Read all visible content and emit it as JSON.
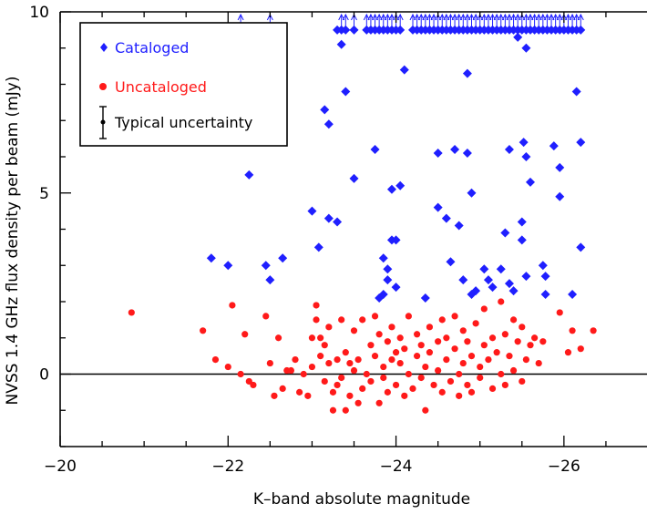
{
  "chart_data": {
    "type": "scatter",
    "title": "",
    "xlabel": "K–band absolute magnitude",
    "ylabel": "NVSS 1.4 GHz flux density per beam (mJy)",
    "xlim": [
      -20,
      -27
    ],
    "ylim": [
      -2,
      10
    ],
    "x_reversed": true,
    "xticks": [
      -20,
      -22,
      -24,
      -26
    ],
    "yticks": [
      0,
      5,
      10
    ],
    "xtick_labels": [
      "−20",
      "−22",
      "−24",
      "−26"
    ],
    "ytick_labels": [
      "0",
      "5",
      "10"
    ],
    "grid": false,
    "zero_line": true,
    "legend": {
      "placement": "top-left",
      "entries": [
        {
          "label": "Cataloged",
          "color": "#1f1fff",
          "marker": "diamond"
        },
        {
          "label": "Uncataloged",
          "color": "#ff1a1a",
          "marker": "circle"
        },
        {
          "label": "Typical uncertainty",
          "color": "#000000",
          "marker": "errorbar"
        }
      ]
    },
    "series": [
      {
        "name": "Cataloged",
        "color": "#1f1fff",
        "marker": "diamond",
        "points": [
          [
            -21.8,
            3.2
          ],
          [
            -22.0,
            3.0
          ],
          [
            -22.25,
            5.5
          ],
          [
            -22.45,
            3.0
          ],
          [
            -22.5,
            2.6
          ],
          [
            -22.65,
            3.2
          ],
          [
            -23.0,
            4.5
          ],
          [
            -23.08,
            3.5
          ],
          [
            -23.15,
            7.3
          ],
          [
            -23.2,
            6.9
          ],
          [
            -23.2,
            4.3
          ],
          [
            -23.3,
            4.2
          ],
          [
            -23.35,
            9.1
          ],
          [
            -23.4,
            7.8
          ],
          [
            -23.5,
            5.4
          ],
          [
            -23.75,
            6.2
          ],
          [
            -23.8,
            2.1
          ],
          [
            -23.85,
            2.2
          ],
          [
            -23.85,
            3.2
          ],
          [
            -23.9,
            2.9
          ],
          [
            -23.9,
            2.6
          ],
          [
            -23.95,
            3.7
          ],
          [
            -23.95,
            5.1
          ],
          [
            -24.0,
            3.7
          ],
          [
            -24.0,
            2.4
          ],
          [
            -24.05,
            5.2
          ],
          [
            -24.1,
            8.4
          ],
          [
            -24.35,
            2.1
          ],
          [
            -24.5,
            6.1
          ],
          [
            -24.5,
            4.6
          ],
          [
            -24.6,
            4.3
          ],
          [
            -24.65,
            3.1
          ],
          [
            -24.7,
            6.2
          ],
          [
            -24.75,
            4.1
          ],
          [
            -24.8,
            2.6
          ],
          [
            -24.85,
            6.1
          ],
          [
            -24.85,
            8.3
          ],
          [
            -24.9,
            2.2
          ],
          [
            -24.9,
            5.0
          ],
          [
            -24.95,
            2.3
          ],
          [
            -25.05,
            2.9
          ],
          [
            -25.1,
            2.6
          ],
          [
            -25.15,
            2.4
          ],
          [
            -25.25,
            2.9
          ],
          [
            -25.3,
            3.9
          ],
          [
            -25.35,
            6.2
          ],
          [
            -25.35,
            2.5
          ],
          [
            -25.4,
            2.3
          ],
          [
            -25.45,
            9.3
          ],
          [
            -25.5,
            4.2
          ],
          [
            -25.5,
            3.7
          ],
          [
            -25.52,
            6.4
          ],
          [
            -25.55,
            9.0
          ],
          [
            -25.55,
            6.0
          ],
          [
            -25.55,
            2.7
          ],
          [
            -25.6,
            5.3
          ],
          [
            -25.75,
            3.0
          ],
          [
            -25.78,
            2.7
          ],
          [
            -25.78,
            2.2
          ],
          [
            -25.88,
            6.3
          ],
          [
            -25.95,
            5.7
          ],
          [
            -25.95,
            4.9
          ],
          [
            -26.1,
            2.2
          ],
          [
            -26.15,
            7.8
          ],
          [
            -26.2,
            3.5
          ],
          [
            -26.2,
            6.4
          ],
          [
            -23.3,
            9.5
          ],
          [
            -23.35,
            9.5
          ],
          [
            -23.4,
            9.5
          ],
          [
            -23.5,
            9.5
          ],
          [
            -23.65,
            9.5
          ],
          [
            -23.7,
            9.5
          ],
          [
            -23.75,
            9.5
          ],
          [
            -23.8,
            9.5
          ],
          [
            -23.85,
            9.5
          ],
          [
            -23.9,
            9.5
          ],
          [
            -23.95,
            9.5
          ],
          [
            -24.0,
            9.5
          ],
          [
            -24.05,
            9.5
          ],
          [
            -24.2,
            9.5
          ],
          [
            -24.25,
            9.5
          ],
          [
            -24.3,
            9.5
          ],
          [
            -24.35,
            9.5
          ],
          [
            -24.4,
            9.5
          ],
          [
            -24.45,
            9.5
          ],
          [
            -24.5,
            9.5
          ],
          [
            -24.55,
            9.5
          ],
          [
            -24.6,
            9.5
          ],
          [
            -24.65,
            9.5
          ],
          [
            -24.7,
            9.5
          ],
          [
            -24.75,
            9.5
          ],
          [
            -24.8,
            9.5
          ],
          [
            -24.85,
            9.5
          ],
          [
            -24.9,
            9.5
          ],
          [
            -24.95,
            9.5
          ],
          [
            -25.0,
            9.5
          ],
          [
            -25.05,
            9.5
          ],
          [
            -25.1,
            9.5
          ],
          [
            -25.15,
            9.5
          ],
          [
            -25.2,
            9.5
          ],
          [
            -25.25,
            9.5
          ],
          [
            -25.3,
            9.5
          ],
          [
            -25.35,
            9.5
          ],
          [
            -25.4,
            9.5
          ],
          [
            -25.45,
            9.5
          ],
          [
            -25.5,
            9.5
          ],
          [
            -25.55,
            9.5
          ],
          [
            -25.6,
            9.5
          ],
          [
            -25.65,
            9.5
          ],
          [
            -25.7,
            9.5
          ],
          [
            -25.75,
            9.5
          ],
          [
            -25.8,
            9.5
          ],
          [
            -25.85,
            9.5
          ],
          [
            -25.9,
            9.5
          ],
          [
            -25.95,
            9.5
          ],
          [
            -26.0,
            9.5
          ],
          [
            -26.05,
            9.5
          ],
          [
            -26.1,
            9.5
          ],
          [
            -26.15,
            9.5
          ],
          [
            -26.2,
            9.5
          ]
        ]
      },
      {
        "name": "Uncataloged",
        "color": "#ff1a1a",
        "marker": "circle",
        "points": [
          [
            -20.85,
            1.7
          ],
          [
            -21.7,
            1.2
          ],
          [
            -21.85,
            0.4
          ],
          [
            -22.0,
            0.2
          ],
          [
            -22.05,
            1.9
          ],
          [
            -22.15,
            0.0
          ],
          [
            -22.2,
            1.1
          ],
          [
            -22.25,
            -0.2
          ],
          [
            -22.3,
            -0.3
          ],
          [
            -22.45,
            1.6
          ],
          [
            -22.5,
            0.3
          ],
          [
            -22.55,
            -0.6
          ],
          [
            -22.6,
            1.0
          ],
          [
            -22.65,
            -0.4
          ],
          [
            -22.7,
            0.1
          ],
          [
            -22.75,
            0.1
          ],
          [
            -22.8,
            0.4
          ],
          [
            -22.85,
            -0.5
          ],
          [
            -22.9,
            0.0
          ],
          [
            -22.95,
            -0.6
          ],
          [
            -23.0,
            1.0
          ],
          [
            -23.0,
            0.2
          ],
          [
            -23.05,
            1.5
          ],
          [
            -23.05,
            1.9
          ],
          [
            -23.1,
            0.5
          ],
          [
            -23.1,
            1.0
          ],
          [
            -23.15,
            -0.2
          ],
          [
            -23.15,
            0.8
          ],
          [
            -23.2,
            0.3
          ],
          [
            -23.2,
            1.3
          ],
          [
            -23.25,
            -0.5
          ],
          [
            -23.25,
            -1.0
          ],
          [
            -23.3,
            0.4
          ],
          [
            -23.3,
            -0.3
          ],
          [
            -23.35,
            1.5
          ],
          [
            -23.35,
            -0.1
          ],
          [
            -23.4,
            -1.0
          ],
          [
            -23.4,
            0.6
          ],
          [
            -23.45,
            0.3
          ],
          [
            -23.45,
            -0.6
          ],
          [
            -23.5,
            0.1
          ],
          [
            -23.5,
            1.2
          ],
          [
            -23.55,
            -0.8
          ],
          [
            -23.55,
            0.4
          ],
          [
            -23.6,
            1.5
          ],
          [
            -23.6,
            -0.4
          ],
          [
            -23.65,
            0.0
          ],
          [
            -23.7,
            0.8
          ],
          [
            -23.7,
            -0.2
          ],
          [
            -23.75,
            1.6
          ],
          [
            -23.75,
            0.5
          ],
          [
            -23.8,
            -0.8
          ],
          [
            -23.8,
            1.1
          ],
          [
            -23.85,
            0.2
          ],
          [
            -23.85,
            -0.1
          ],
          [
            -23.9,
            0.9
          ],
          [
            -23.9,
            -0.5
          ],
          [
            -23.95,
            0.4
          ],
          [
            -23.95,
            1.3
          ],
          [
            -24.0,
            0.6
          ],
          [
            -24.0,
            -0.3
          ],
          [
            -24.05,
            1.0
          ],
          [
            -24.05,
            0.3
          ],
          [
            -24.1,
            -0.6
          ],
          [
            -24.1,
            0.7
          ],
          [
            -24.15,
            0.0
          ],
          [
            -24.15,
            1.6
          ],
          [
            -24.2,
            -0.4
          ],
          [
            -24.25,
            0.5
          ],
          [
            -24.25,
            1.1
          ],
          [
            -24.3,
            -0.1
          ],
          [
            -24.3,
            0.8
          ],
          [
            -24.35,
            -1.0
          ],
          [
            -24.35,
            0.2
          ],
          [
            -24.4,
            1.3
          ],
          [
            -24.4,
            0.6
          ],
          [
            -24.45,
            -0.3
          ],
          [
            -24.5,
            0.9
          ],
          [
            -24.5,
            0.1
          ],
          [
            -24.55,
            1.5
          ],
          [
            -24.55,
            -0.5
          ],
          [
            -24.6,
            0.4
          ],
          [
            -24.6,
            1.0
          ],
          [
            -24.65,
            -0.2
          ],
          [
            -24.7,
            0.7
          ],
          [
            -24.7,
            1.6
          ],
          [
            -24.75,
            0.0
          ],
          [
            -24.75,
            -0.6
          ],
          [
            -24.8,
            1.2
          ],
          [
            -24.8,
            0.3
          ],
          [
            -24.85,
            -0.3
          ],
          [
            -24.85,
            0.9
          ],
          [
            -24.9,
            0.5
          ],
          [
            -24.9,
            -0.5
          ],
          [
            -24.95,
            1.4
          ],
          [
            -25.0,
            0.2
          ],
          [
            -25.0,
            -0.1
          ],
          [
            -25.05,
            0.8
          ],
          [
            -25.05,
            1.8
          ],
          [
            -25.1,
            0.4
          ],
          [
            -25.15,
            -0.4
          ],
          [
            -25.15,
            1.0
          ],
          [
            -25.2,
            0.6
          ],
          [
            -25.25,
            0.0
          ],
          [
            -25.25,
            2.0
          ],
          [
            -25.3,
            1.1
          ],
          [
            -25.3,
            -0.3
          ],
          [
            -25.35,
            0.5
          ],
          [
            -25.4,
            1.5
          ],
          [
            -25.4,
            0.1
          ],
          [
            -25.45,
            0.9
          ],
          [
            -25.5,
            -0.2
          ],
          [
            -25.5,
            1.3
          ],
          [
            -25.55,
            0.4
          ],
          [
            -25.6,
            0.8
          ],
          [
            -25.65,
            1.0
          ],
          [
            -25.7,
            0.3
          ],
          [
            -25.75,
            0.9
          ],
          [
            -25.95,
            1.7
          ],
          [
            -26.05,
            0.6
          ],
          [
            -26.1,
            1.2
          ],
          [
            -26.2,
            0.7
          ],
          [
            -26.35,
            1.2
          ]
        ]
      }
    ],
    "lower_limit_arrows": {
      "color": "#1f1fff",
      "note": "upward arrows at top of plot",
      "x": [
        -22.15,
        -22.5,
        -23.35,
        -23.4,
        -23.5,
        -23.65,
        -23.7,
        -23.75,
        -23.8,
        -23.85,
        -23.9,
        -23.95,
        -24.0,
        -24.05,
        -24.2,
        -24.25,
        -24.3,
        -24.35,
        -24.4,
        -24.45,
        -24.5,
        -24.55,
        -24.6,
        -24.65,
        -24.7,
        -24.75,
        -24.8,
        -24.85,
        -24.9,
        -24.95,
        -25.0,
        -25.05,
        -25.1,
        -25.15,
        -25.2,
        -25.25,
        -25.3,
        -25.35,
        -25.4,
        -25.45,
        -25.5,
        -25.55,
        -25.6,
        -25.65,
        -25.7,
        -25.75,
        -25.8,
        -25.85,
        -25.9,
        -25.95,
        -26.0,
        -26.05,
        -26.1,
        -26.15,
        -26.2
      ]
    }
  }
}
